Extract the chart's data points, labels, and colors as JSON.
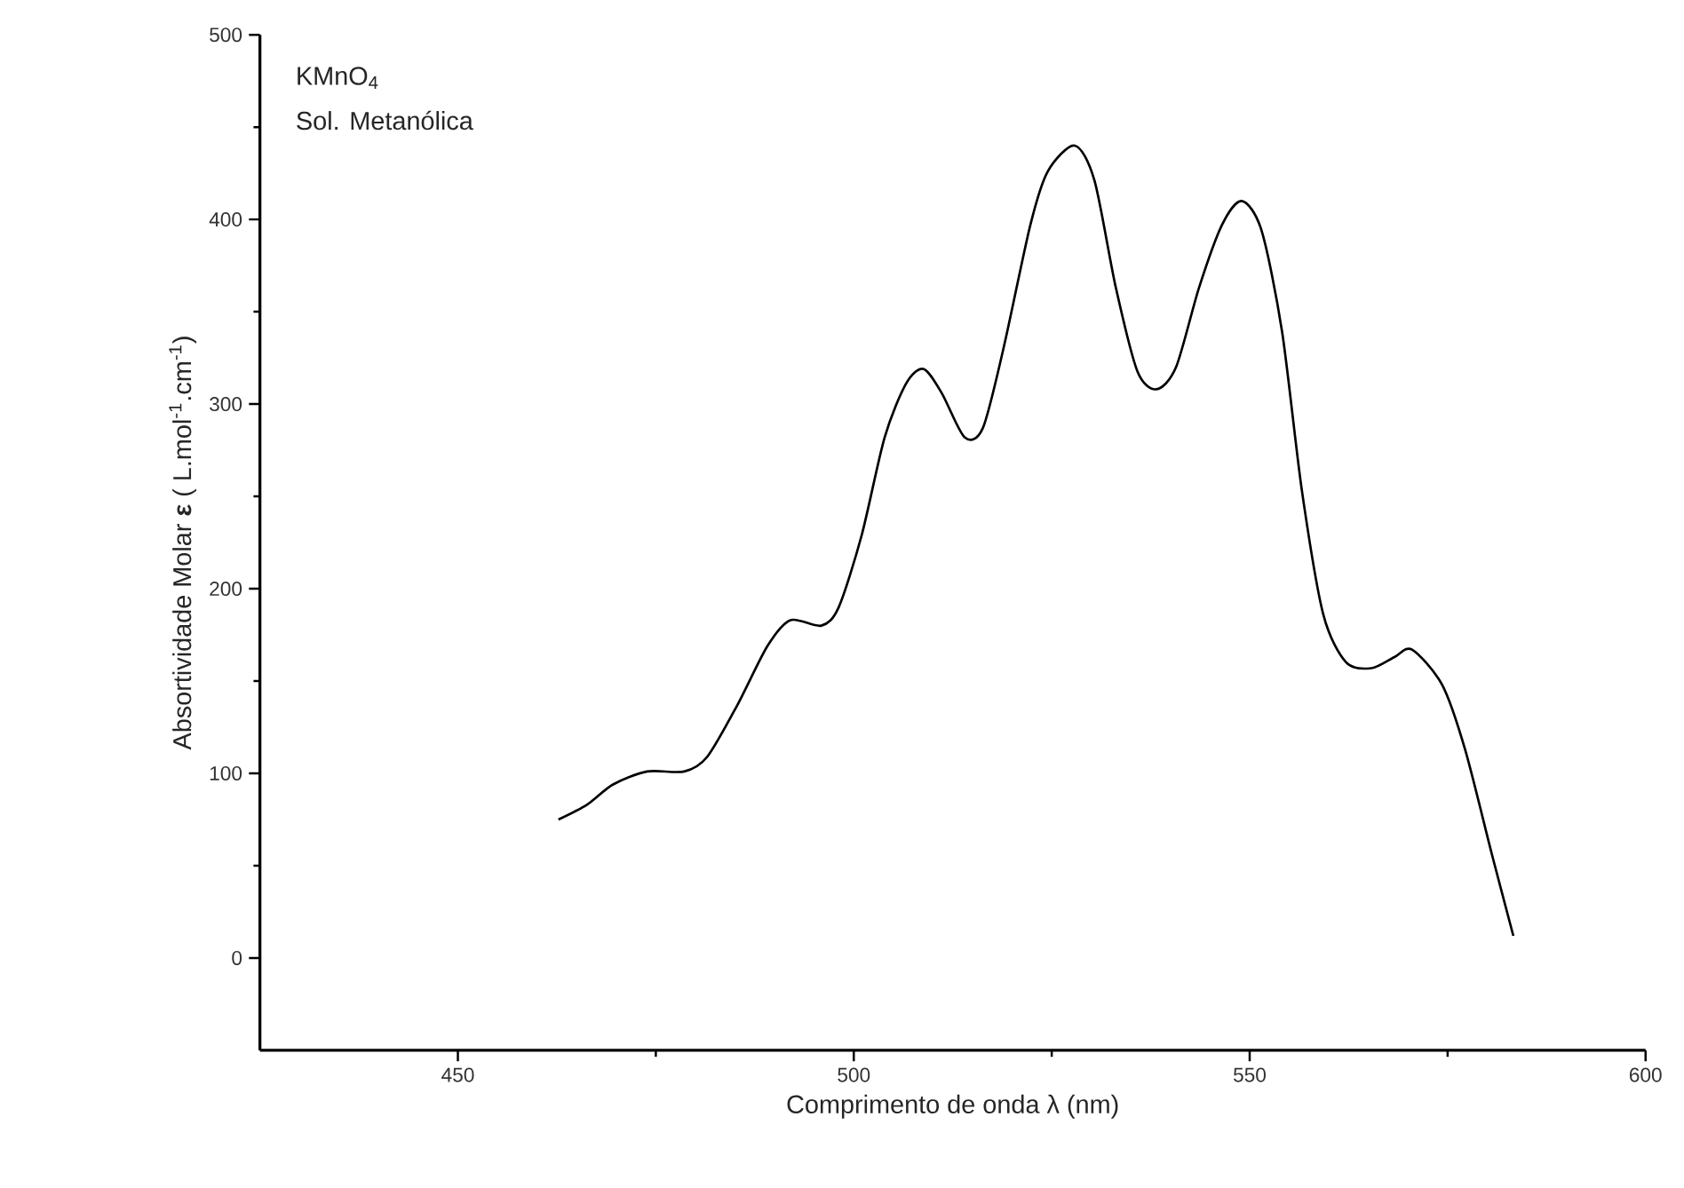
{
  "chart_data": {
    "type": "line",
    "xlabel": "Comprimento de onda λ (nm)",
    "ylabel": "Absortividade Molar **ε** ( L.mol$^{-1}$.cm$^{-1}$)",
    "annotations": [
      "KMnO$_{4}$",
      "Sol. Metanólica"
    ],
    "xlim": [
      425,
      600
    ],
    "xticks": [
      450,
      500,
      550,
      600
    ],
    "ylim": [
      -50,
      500
    ],
    "yticks": [
      0,
      100,
      200,
      300,
      400,
      500
    ],
    "line_style": "solid",
    "series": [
      {
        "color": "#000000",
        "x": [
          462.7,
          466.3,
          469.6,
          473.9,
          478.6,
          481.5,
          485.3,
          489.1,
          492.0,
          495.9,
          498.1,
          501.0,
          503.9,
          506.6,
          508.8,
          511.1,
          514.0,
          516.3,
          518.9,
          522.3,
          524.5,
          527.9,
          530.4,
          533.1,
          535.8,
          538.2,
          540.7,
          543.6,
          546.5,
          549.0,
          551.5,
          554.1,
          556.6,
          559.3,
          562.2,
          565.4,
          568.3,
          570.5,
          574.3,
          577.2,
          580.6,
          583.3
        ],
        "values": [
          75,
          83,
          94,
          101,
          101,
          109,
          137,
          169,
          183,
          180,
          190,
          229,
          282,
          311,
          319,
          306,
          282,
          287,
          330,
          397,
          426,
          440,
          421,
          363,
          318,
          308,
          320,
          363,
          397,
          410,
          394,
          339,
          253,
          186,
          160,
          157,
          163,
          167,
          148,
          113,
          56,
          12
        ]
      }
    ]
  }
}
